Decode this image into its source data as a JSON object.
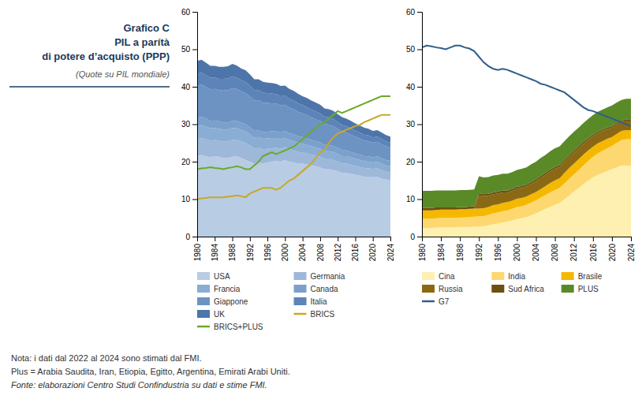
{
  "chart_data": [
    {
      "type": "area",
      "stacked": true,
      "title": [
        "Grafico C",
        "PIL a parítà",
        "di potere d’acquisto (PPP)"
      ],
      "subtitle": "(Quote su PIL mondiale)",
      "annotations": [
        "Nota: i dati dal 2022 al 2024 sono stimati dal FMI.",
        "Plus = Arabia Saudita, Iran, Etiopia, Egitto, Argentina, Emirati Arabi Uniti.",
        "Fonte: elaborazioni Centro Studi Confindustria su dati e stime FMI."
      ],
      "x": [
        1980,
        1981,
        1982,
        1983,
        1984,
        1985,
        1986,
        1987,
        1988,
        1989,
        1990,
        1991,
        1992,
        1993,
        1994,
        1995,
        1996,
        1997,
        1998,
        1999,
        2000,
        2001,
        2002,
        2003,
        2004,
        2005,
        2006,
        2007,
        2008,
        2009,
        2010,
        2011,
        2012,
        2013,
        2014,
        2015,
        2016,
        2017,
        2018,
        2019,
        2020,
        2021,
        2022,
        2023,
        2024
      ],
      "xlim": [
        1980,
        2024
      ],
      "xticks": [
        1980,
        1984,
        1988,
        1992,
        1996,
        2000,
        2004,
        2008,
        2012,
        2016,
        2020,
        2024
      ],
      "ylim": [
        0,
        60
      ],
      "yticks": [
        0,
        10,
        20,
        30,
        40,
        50,
        60
      ],
      "grid": false,
      "legend": "bottom",
      "series": [
        {
          "name": "USA",
          "type": "area",
          "color": "#b8cce4",
          "values": [
            21.5,
            21.8,
            21.5,
            21.2,
            21.5,
            21.3,
            21.0,
            21.0,
            21.3,
            21.5,
            21.0,
            20.5,
            20.0,
            19.5,
            19.8,
            19.5,
            19.8,
            20.0,
            20.2,
            20.0,
            20.5,
            20.0,
            19.8,
            19.5,
            19.5,
            19.3,
            19.0,
            18.8,
            18.5,
            18.0,
            18.0,
            17.8,
            17.5,
            17.0,
            17.0,
            16.8,
            16.5,
            16.3,
            16.0,
            16.0,
            16.0,
            16.0,
            15.5,
            15.2,
            15.0
          ]
        },
        {
          "name": "Germania",
          "type": "area",
          "color": "#9db8d9",
          "values": [
            4.5,
            4.5,
            4.5,
            4.4,
            4.3,
            4.3,
            4.4,
            4.4,
            4.5,
            4.4,
            4.4,
            4.5,
            4.3,
            4.0,
            3.9,
            3.8,
            3.7,
            3.6,
            3.5,
            3.4,
            3.4,
            3.3,
            3.2,
            3.1,
            3.0,
            2.9,
            2.9,
            2.8,
            2.8,
            2.7,
            2.7,
            2.7,
            2.6,
            2.5,
            2.5,
            2.4,
            2.4,
            2.3,
            2.3,
            2.2,
            2.1,
            2.2,
            2.2,
            2.1,
            2.1
          ]
        },
        {
          "name": "Francia",
          "type": "area",
          "color": "#8aadd4",
          "values": [
            3.5,
            3.5,
            3.4,
            3.3,
            3.2,
            3.2,
            3.2,
            3.2,
            3.2,
            3.1,
            3.1,
            3.1,
            3.0,
            2.9,
            2.9,
            2.8,
            2.7,
            2.7,
            2.6,
            2.6,
            2.5,
            2.5,
            2.5,
            2.4,
            2.3,
            2.3,
            2.2,
            2.2,
            2.2,
            2.1,
            2.1,
            2.1,
            2.0,
            2.0,
            2.0,
            1.9,
            1.9,
            1.9,
            1.8,
            1.8,
            1.7,
            1.8,
            1.8,
            1.7,
            1.7
          ]
        },
        {
          "name": "Canada",
          "type": "area",
          "color": "#7ba0cb",
          "values": [
            2.2,
            2.2,
            2.1,
            2.0,
            2.0,
            2.0,
            1.9,
            1.9,
            1.9,
            1.9,
            1.9,
            1.9,
            1.9,
            1.8,
            1.8,
            1.8,
            1.8,
            1.8,
            1.8,
            1.8,
            1.8,
            1.8,
            1.8,
            1.8,
            1.8,
            1.7,
            1.7,
            1.7,
            1.7,
            1.7,
            1.6,
            1.6,
            1.6,
            1.5,
            1.5,
            1.5,
            1.4,
            1.4,
            1.4,
            1.4,
            1.3,
            1.4,
            1.4,
            1.4,
            1.4
          ]
        },
        {
          "name": "Giappone",
          "type": "area",
          "color": "#6d93c3",
          "values": [
            8.5,
            8.6,
            8.5,
            8.4,
            8.4,
            8.3,
            8.5,
            8.6,
            8.7,
            8.5,
            8.4,
            8.3,
            8.2,
            8.1,
            8.0,
            7.8,
            7.7,
            7.5,
            7.4,
            7.2,
            7.0,
            6.8,
            6.7,
            6.5,
            6.3,
            6.2,
            6.0,
            5.8,
            5.7,
            5.6,
            5.5,
            5.3,
            5.1,
            5.0,
            4.8,
            4.6,
            4.5,
            4.3,
            4.2,
            4.1,
            4.0,
            3.9,
            3.8,
            3.7,
            3.6
          ]
        },
        {
          "name": "Italia",
          "type": "area",
          "color": "#5c84b8",
          "values": [
            3.2,
            3.2,
            3.1,
            3.1,
            3.0,
            3.0,
            3.1,
            3.1,
            3.2,
            3.1,
            3.0,
            3.0,
            2.9,
            2.8,
            2.7,
            2.7,
            2.6,
            2.6,
            2.5,
            2.5,
            2.4,
            2.4,
            2.3,
            2.3,
            2.2,
            2.2,
            2.1,
            2.1,
            2.0,
            1.9,
            1.9,
            1.9,
            1.8,
            1.8,
            1.7,
            1.7,
            1.6,
            1.6,
            1.5,
            1.5,
            1.4,
            1.4,
            1.4,
            1.3,
            1.3
          ]
        },
        {
          "name": "UK",
          "type": "area",
          "color": "#4d75aa",
          "values": [
            3.5,
            3.4,
            3.3,
            3.2,
            3.2,
            3.2,
            3.2,
            3.3,
            3.3,
            3.2,
            3.1,
            3.1,
            3.0,
            2.9,
            2.9,
            2.9,
            2.8,
            2.8,
            2.8,
            2.7,
            2.7,
            2.6,
            2.6,
            2.5,
            2.4,
            2.4,
            2.4,
            2.4,
            2.3,
            2.2,
            2.2,
            2.2,
            2.1,
            2.1,
            2.0,
            2.0,
            1.9,
            1.9,
            1.9,
            1.8,
            1.7,
            1.7,
            1.7,
            1.7,
            1.6
          ]
        },
        {
          "name": "BRICS",
          "type": "line",
          "color": "#c8a828",
          "values": [
            10.0,
            10.2,
            10.3,
            10.5,
            10.5,
            10.5,
            10.5,
            10.7,
            10.8,
            11.0,
            10.8,
            10.5,
            11.5,
            12.0,
            12.5,
            13.0,
            13.0,
            13.0,
            12.5,
            13.0,
            14.0,
            15.0,
            15.5,
            16.5,
            17.5,
            18.5,
            19.5,
            21.0,
            22.5,
            23.0,
            25.0,
            26.5,
            27.5,
            28.0,
            28.5,
            29.0,
            29.5,
            29.8,
            30.5,
            31.0,
            31.5,
            32.0,
            32.5,
            32.5,
            32.5
          ]
        },
        {
          "name": "BRICS+PLUS",
          "type": "line",
          "color": "#6aaa2a",
          "values": [
            18.0,
            18.2,
            18.3,
            18.5,
            18.3,
            18.2,
            18.0,
            18.3,
            18.5,
            18.8,
            18.5,
            18.0,
            18.0,
            19.0,
            20.0,
            21.5,
            22.0,
            22.5,
            22.0,
            22.5,
            23.0,
            23.5,
            24.0,
            25.0,
            26.0,
            27.0,
            28.0,
            29.0,
            30.0,
            30.5,
            31.5,
            32.5,
            33.5,
            33.0,
            33.5,
            34.0,
            34.5,
            35.0,
            35.5,
            36.0,
            36.5,
            37.0,
            37.5,
            37.5,
            37.5
          ]
        }
      ]
    },
    {
      "type": "area",
      "stacked": true,
      "x": [
        1980,
        1981,
        1982,
        1983,
        1984,
        1985,
        1986,
        1987,
        1988,
        1989,
        1990,
        1991,
        1992,
        1993,
        1994,
        1995,
        1996,
        1997,
        1998,
        1999,
        2000,
        2001,
        2002,
        2003,
        2004,
        2005,
        2006,
        2007,
        2008,
        2009,
        2010,
        2011,
        2012,
        2013,
        2014,
        2015,
        2016,
        2017,
        2018,
        2019,
        2020,
        2021,
        2022,
        2023,
        2024
      ],
      "xlim": [
        1980,
        2024
      ],
      "xticks": [
        1980,
        1984,
        1988,
        1992,
        1996,
        2000,
        2004,
        2008,
        2012,
        2016,
        2020,
        2024
      ],
      "ylim": [
        0,
        60
      ],
      "yticks": [
        0,
        10,
        20,
        30,
        40,
        50,
        60
      ],
      "grid": false,
      "legend": "bottom",
      "series": [
        {
          "name": "Cina",
          "type": "area",
          "color": "#fef0b0",
          "values": [
            2.3,
            2.3,
            2.3,
            2.4,
            2.5,
            2.5,
            2.5,
            2.5,
            2.6,
            2.6,
            2.6,
            2.7,
            2.7,
            2.8,
            3.0,
            3.3,
            3.5,
            3.8,
            4.0,
            4.3,
            4.7,
            4.9,
            5.2,
            5.7,
            6.2,
            6.8,
            7.4,
            8.0,
            8.5,
            9.0,
            10.0,
            11.0,
            12.0,
            13.0,
            14.0,
            15.0,
            15.8,
            16.5,
            17.0,
            17.5,
            18.0,
            18.5,
            19.0,
            19.0,
            18.8
          ]
        },
        {
          "name": "India",
          "type": "area",
          "color": "#fdd870",
          "values": [
            2.5,
            2.5,
            2.5,
            2.5,
            2.5,
            2.5,
            2.5,
            2.5,
            2.5,
            2.5,
            2.6,
            2.6,
            2.7,
            2.7,
            2.8,
            2.9,
            2.9,
            3.0,
            3.0,
            3.1,
            3.2,
            3.2,
            3.3,
            3.4,
            3.5,
            3.6,
            3.7,
            3.8,
            3.9,
            4.0,
            4.2,
            4.4,
            4.6,
            4.8,
            5.0,
            5.2,
            5.5,
            5.7,
            5.9,
            6.1,
            6.2,
            6.5,
            6.8,
            7.0,
            7.2
          ]
        },
        {
          "name": "Brasile",
          "type": "area",
          "color": "#f5b800",
          "values": [
            2.2,
            2.2,
            2.2,
            2.2,
            2.2,
            2.2,
            2.2,
            2.2,
            2.2,
            2.2,
            2.2,
            2.2,
            2.1,
            2.1,
            2.1,
            2.2,
            2.2,
            2.2,
            2.2,
            2.2,
            2.2,
            2.2,
            2.2,
            2.2,
            2.2,
            2.3,
            2.4,
            2.5,
            2.6,
            2.6,
            2.8,
            2.9,
            2.9,
            2.9,
            2.9,
            2.8,
            2.7,
            2.7,
            2.6,
            2.5,
            2.4,
            2.4,
            2.4,
            2.4,
            2.4
          ]
        },
        {
          "name": "Russia",
          "type": "area",
          "color": "#8b6914",
          "values": [
            0.0,
            0.0,
            0.0,
            0.0,
            0.0,
            0.0,
            0.0,
            0.0,
            0.0,
            0.0,
            0.0,
            0.0,
            3.5,
            3.2,
            3.0,
            2.9,
            2.9,
            2.8,
            2.6,
            2.6,
            2.7,
            2.7,
            2.7,
            2.8,
            2.9,
            3.0,
            3.0,
            3.1,
            3.1,
            3.0,
            3.0,
            3.0,
            3.0,
            2.9,
            2.9,
            2.9,
            2.8,
            2.8,
            2.7,
            2.6,
            2.5,
            2.5,
            2.4,
            2.4,
            2.3
          ]
        },
        {
          "name": "Sud Africa",
          "type": "area",
          "color": "#6b5010",
          "values": [
            0.7,
            0.7,
            0.7,
            0.7,
            0.6,
            0.6,
            0.6,
            0.6,
            0.6,
            0.6,
            0.6,
            0.6,
            0.6,
            0.5,
            0.5,
            0.5,
            0.5,
            0.5,
            0.5,
            0.5,
            0.5,
            0.5,
            0.5,
            0.5,
            0.5,
            0.5,
            0.5,
            0.5,
            0.5,
            0.5,
            0.5,
            0.5,
            0.5,
            0.5,
            0.5,
            0.4,
            0.4,
            0.4,
            0.4,
            0.4,
            0.4,
            0.4,
            0.4,
            0.4,
            0.4
          ]
        },
        {
          "name": "PLUS",
          "type": "area",
          "color": "#5a8a28",
          "values": [
            4.5,
            4.5,
            4.5,
            4.5,
            4.5,
            4.5,
            4.5,
            4.5,
            4.5,
            4.5,
            4.5,
            4.5,
            4.5,
            4.5,
            4.5,
            4.5,
            4.5,
            4.5,
            4.5,
            4.5,
            4.5,
            4.6,
            4.6,
            4.7,
            4.7,
            4.8,
            4.8,
            4.9,
            5.0,
            5.0,
            5.0,
            5.0,
            5.0,
            5.0,
            5.0,
            5.1,
            5.2,
            5.2,
            5.3,
            5.4,
            5.5,
            5.5,
            5.5,
            5.6,
            5.7
          ]
        },
        {
          "name": "G7",
          "type": "line",
          "color": "#2e5f8a",
          "values": [
            50.5,
            51.0,
            50.8,
            50.5,
            50.3,
            50.0,
            50.5,
            51.0,
            51.0,
            50.5,
            50.2,
            49.5,
            48.0,
            46.5,
            45.5,
            44.8,
            44.5,
            44.8,
            44.5,
            44.0,
            43.5,
            43.0,
            42.5,
            42.0,
            41.5,
            40.8,
            40.5,
            40.0,
            39.5,
            39.0,
            38.5,
            37.5,
            36.5,
            35.5,
            34.5,
            33.8,
            33.5,
            33.0,
            32.5,
            32.0,
            31.5,
            31.0,
            30.5,
            30.0,
            29.5
          ]
        }
      ]
    }
  ]
}
